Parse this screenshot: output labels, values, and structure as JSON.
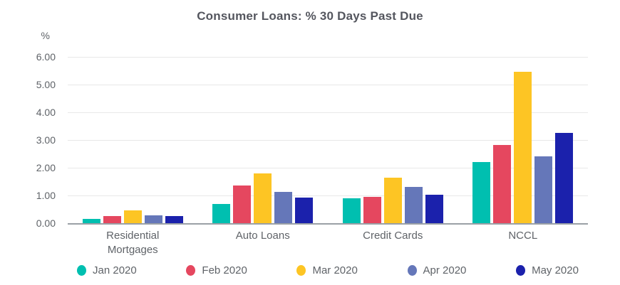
{
  "chart_data": {
    "type": "bar",
    "title": "Consumer Loans: % 30 Days Past Due",
    "ylabel": "%",
    "xlabel": "",
    "ylim": [
      0,
      6
    ],
    "ytick_labels": [
      "6.00",
      "5.00",
      "4.00",
      "3.00",
      "2.00",
      "1.00",
      "0.00"
    ],
    "grid": true,
    "legend_position": "bottom",
    "categories": [
      "Residential Mortgages",
      "Auto Loans",
      "Credit Cards",
      "NCCL"
    ],
    "series": [
      {
        "name": "Jan 2020",
        "color": "#00BFB0",
        "values": [
          0.15,
          0.7,
          0.9,
          2.2
        ]
      },
      {
        "name": "Feb 2020",
        "color": "#E5475F",
        "values": [
          0.25,
          1.37,
          0.95,
          2.83
        ]
      },
      {
        "name": "Mar 2020",
        "color": "#FDC524",
        "values": [
          0.45,
          1.8,
          1.65,
          5.45
        ]
      },
      {
        "name": "Apr 2020",
        "color": "#6577B9",
        "values": [
          0.27,
          1.12,
          1.3,
          2.42
        ]
      },
      {
        "name": "May 2020",
        "color": "#1B21AC",
        "values": [
          0.25,
          0.93,
          1.02,
          3.25
        ]
      }
    ]
  },
  "colors": {
    "title": "#54565E",
    "axis_text": "#5F6368",
    "gridline": "#E8E8E8",
    "baseline": "#9AA0A6",
    "background": "#FFFFFF"
  }
}
